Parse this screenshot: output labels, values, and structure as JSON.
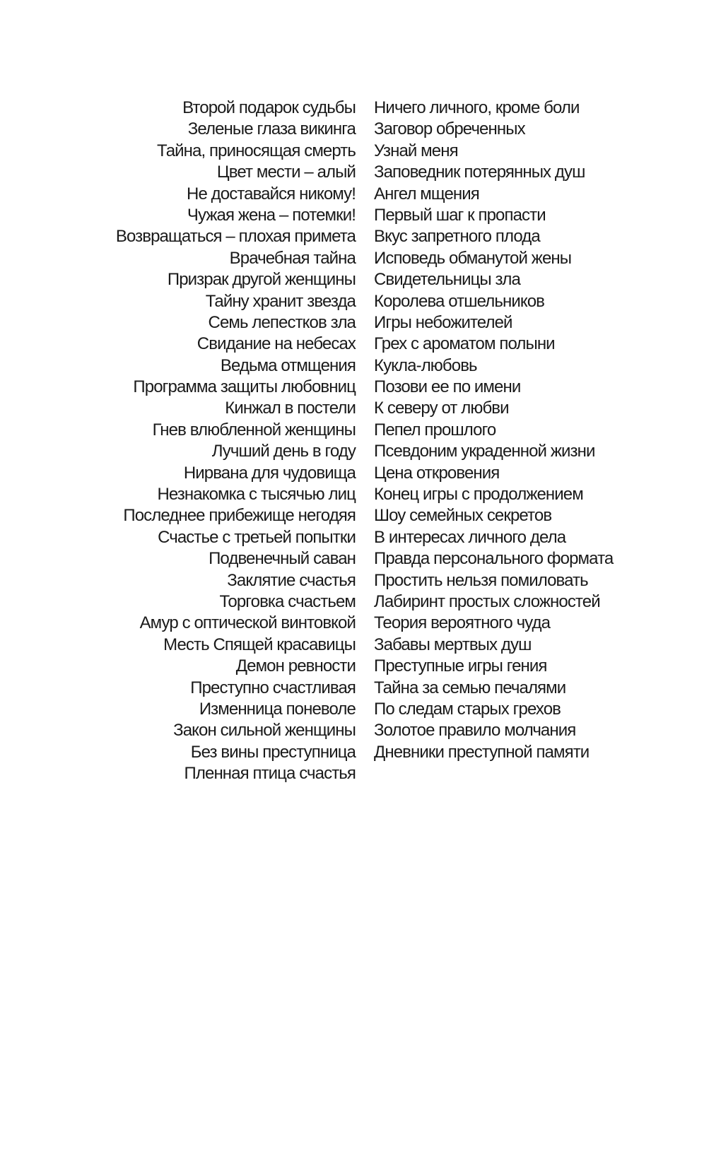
{
  "left_column": [
    "Второй подарок судьбы",
    "Зеленые глаза викинга",
    "Тайна, приносящая смерть",
    "Цвет мести – алый",
    "Не доставайся никому!",
    "Чужая жена – потемки!",
    "Возвращаться – плохая примета",
    "Врачебная тайна",
    "Призрак другой женщины",
    "Тайну хранит звезда",
    "Семь лепестков зла",
    "Свидание на небесах",
    "Ведьма отмщения",
    "Программа защиты любовниц",
    "Кинжал в постели",
    "Гнев влюбленной женщины",
    "Лучший день в году",
    "Нирвана для чудовища",
    "Незнакомка с тысячью лиц",
    "Последнее прибежище негодяя",
    "Счастье с третьей попытки",
    "Подвенечный саван",
    "Заклятие счастья",
    "Торговка счастьем",
    "Амур с оптической винтовкой",
    "Месть Спящей красавицы",
    "Демон ревности",
    "Преступно счастливая",
    "Изменница поневоле",
    "Закон сильной женщины",
    "Без вины преступница",
    "Пленная птица счастья"
  ],
  "right_column": [
    "Ничего личного, кроме боли",
    "Заговор обреченных",
    "Узнай меня",
    "Заповедник потерянных душ",
    "Ангел мщения",
    "Первый шаг к пропасти",
    "Вкус запретного плода",
    "Исповедь обманутой жены",
    "Свидетельницы зла",
    "Королева отшельников",
    "Игры небожителей",
    "Грех с ароматом полыни",
    "Кукла-любовь",
    "Позови ее по имени",
    "К северу от любви",
    "Пепел прошлого",
    "Псевдоним украденной жизни",
    "Цена откровения",
    "Конец игры с продолжением",
    "Шоу семейных секретов",
    "В интересах личного дела",
    "Правда персонального формата",
    "Простить нельзя помиловать",
    "Лабиринт простых сложностей",
    "Теория вероятного чуда",
    "Забавы мертвых душ",
    "Преступные игры гения",
    "Тайна за семью печалями",
    "По следам старых грехов",
    "Золотое правило молчания",
    "Дневники преступной памяти"
  ]
}
